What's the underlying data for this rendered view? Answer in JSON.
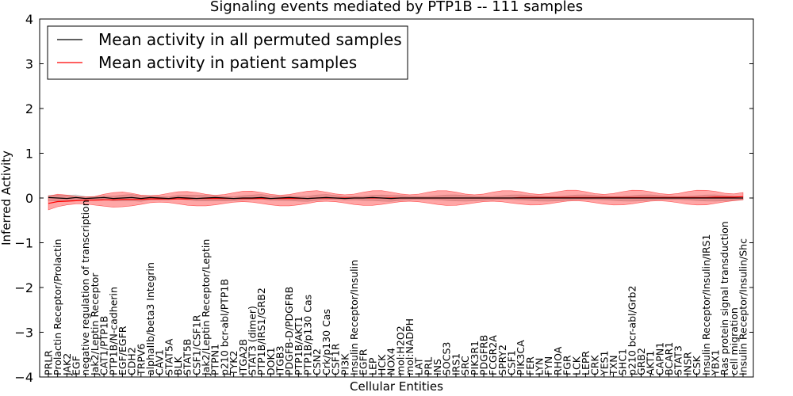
{
  "chart_data": {
    "type": "line",
    "title": "Signaling events mediated by PTP1B -- 111 samples",
    "xlabel": "Cellular Entities",
    "ylabel": "Inferred Activity",
    "ylim": [
      -4,
      4
    ],
    "yticks": [
      -4,
      -3,
      -2,
      -1,
      0,
      1,
      2,
      3,
      4
    ],
    "ytick_labels": [
      "−4",
      "−3",
      "−2",
      "−1",
      "0",
      "1",
      "2",
      "3",
      "4"
    ],
    "legend_position": "top-left",
    "categories": [
      "PRLR",
      "Prolactin Receptor/Prolactin",
      "JAK2",
      "EGF",
      "negative regulation of transcription",
      "Jak2/Leptin Receptor",
      "CAT1/PTP1B",
      "PTP1B/N-cadherin",
      "EGF/EGFR",
      "CDH2",
      "TRPV6",
      "alphaIIb/beta3 Integrin",
      "CAV1",
      "STAT5A",
      "BLK",
      "STAT5B",
      "CSF1/CSF1R",
      "Jak2/Leptin Receptor/Leptin",
      "PTPN1",
      "p210 bcr-abl/PTP1B",
      "TYK2",
      "ITGA2B",
      "STAT3 (dimer)",
      "PTP1B/IRS1/GRB2",
      "DOK1",
      "ITGB3",
      "PDGFB-D/PDGFRB",
      "PTP1B/AKT1",
      "PTP1B/p130 Cas",
      "CSN2",
      "Crk/p130 Cas",
      "CSF1R",
      "PI3K",
      "Insulin Receptor/Insulin",
      "EGFR",
      "LEP",
      "HCK",
      "NOX4",
      "mol:H2O2",
      "mol:NADPH",
      "LAT",
      "PRL",
      "INS",
      "SOCS3",
      "IRS1",
      "SRC",
      "PIK3R1",
      "PDGFRB",
      "FCGR2A",
      "SPRY2",
      "CSF1",
      "PIK3CA",
      "FER",
      "LYN",
      "FYN",
      "RHOA",
      "FGR",
      "LCK",
      "LEPR",
      "CRK",
      "YES1",
      "TXN",
      "SHC1",
      "p210 bcr-abl/Grb2",
      "GRB2",
      "AKT1",
      "CAPN1",
      "BCAR1",
      "STAT3",
      "INSR",
      "CSK",
      "Insulin Receptor/Insulin/IRS1",
      "YBX1",
      "Ras protein signal transduction",
      "cell migration",
      "Insulin Receptor/Insulin/Shc"
    ],
    "series": [
      {
        "name": "Mean activity in all permuted samples",
        "color": "#000000",
        "values": [
          0.01,
          0.0,
          -0.01,
          0.01,
          -0.01,
          0.0,
          0.01,
          -0.01,
          0.0,
          0.01,
          -0.01,
          0.01,
          0.0,
          -0.01,
          0.01,
          0.0,
          -0.01,
          0.0,
          0.01,
          0.0,
          -0.01,
          0.0,
          0.0,
          0.01,
          -0.01,
          0.0,
          0.01,
          0.0,
          -0.01,
          0.0,
          0.01,
          0.0,
          -0.01,
          0.0,
          0.0,
          0.01,
          0.0,
          -0.01,
          0.0,
          0.0,
          0.0,
          0.0,
          0.0,
          0.0,
          0.0,
          0.0,
          0.0,
          0.0,
          0.0,
          0.0,
          0.0,
          0.0,
          0.0,
          0.0,
          0.0,
          0.0,
          0.0,
          0.0,
          0.0,
          0.0,
          0.0,
          0.0,
          0.0,
          0.0,
          0.0,
          0.0,
          0.0,
          0.0,
          0.0,
          0.0,
          0.0,
          0.0,
          0.0,
          0.0,
          0.0,
          0.0
        ],
        "band": 0.05
      },
      {
        "name": "Mean activity in patient samples",
        "color": "#ff0000",
        "values": [
          -0.12,
          -0.08,
          -0.07,
          -0.06,
          -0.05,
          -0.05,
          -0.04,
          -0.04,
          -0.03,
          -0.03,
          -0.03,
          -0.02,
          -0.02,
          -0.02,
          -0.02,
          -0.02,
          -0.01,
          -0.01,
          -0.01,
          -0.01,
          -0.01,
          -0.01,
          -0.01,
          -0.01,
          -0.01,
          -0.01,
          -0.01,
          -0.01,
          -0.01,
          0.0,
          0.0,
          0.0,
          0.0,
          0.0,
          0.0,
          0.0,
          0.0,
          0.0,
          0.0,
          0.0,
          0.0,
          0.0,
          0.0,
          0.0,
          0.0,
          0.0,
          0.0,
          0.0,
          0.0,
          0.0,
          0.0,
          0.01,
          0.01,
          0.01,
          0.01,
          0.01,
          0.01,
          0.01,
          0.01,
          0.01,
          0.01,
          0.01,
          0.01,
          0.01,
          0.01,
          0.01,
          0.01,
          0.01,
          0.01,
          0.01,
          0.01,
          0.01,
          0.02,
          0.02,
          0.02,
          0.03
        ],
        "band": 0.12
      }
    ]
  }
}
